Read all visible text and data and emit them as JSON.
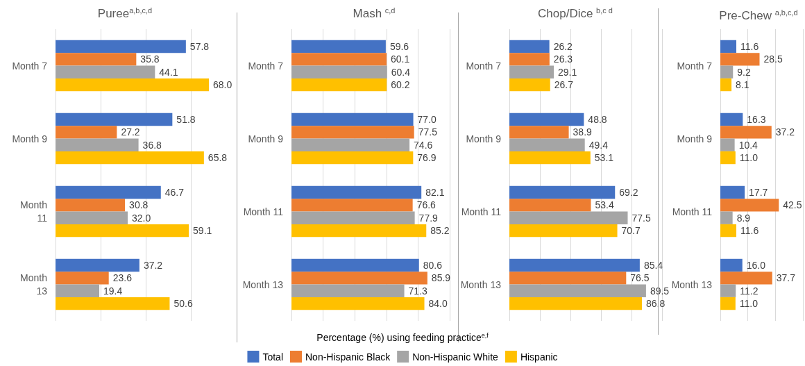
{
  "chart_data": [
    {
      "type": "bar",
      "orientation": "horizontal",
      "title": "Puree$^{a,b,c,d}$",
      "categories": [
        "Month 7",
        "Month 9",
        "Month 11",
        "Month 13"
      ],
      "xlim": [
        0,
        80
      ],
      "xticks": [
        {
          "value": 0,
          "label": null
        },
        {
          "value": 20,
          "label": null
        },
        {
          "value": 40,
          "label": null
        },
        {
          "value": 60,
          "label": null
        },
        {
          "value": 80,
          "label": null
        }
      ],
      "grid": "x",
      "tick_labels": "y",
      "series": [
        {
          "color": "#4472c4",
          "values": [
            57.8,
            51.8,
            46.7,
            37.2
          ],
          "value_labels": [
            "57.8",
            "51.8",
            "46.7",
            "37.2"
          ]
        },
        {
          "color": "#ed7d31",
          "values": [
            35.8,
            27.2,
            30.8,
            23.6
          ],
          "value_labels": [
            "35.8",
            "27.2",
            "30.8",
            "23.6"
          ]
        },
        {
          "color": "#a5a5a5",
          "values": [
            44.1,
            36.8,
            32.0,
            19.4
          ],
          "value_labels": [
            "44.1",
            "36.8",
            "32.0",
            "19.4"
          ]
        },
        {
          "color": "#ffc000",
          "values": [
            68.0,
            65.8,
            59.1,
            50.6
          ],
          "value_labels": [
            "68.0",
            "65.8",
            "59.1",
            "50.6"
          ]
        }
      ]
    },
    {
      "type": "bar",
      "orientation": "horizontal",
      "title": "Mash $^{c,d}$",
      "xlabel": "Percentage (%) using feeding practice$^{e,f}$",
      "legend": "bottom",
      "categories": [
        "Month 7",
        "Month 9",
        "Month 11",
        "Month 13"
      ],
      "xlim": [
        0,
        100
      ],
      "xticks": [
        {
          "value": 0,
          "label": null
        },
        {
          "value": 20,
          "label": null
        },
        {
          "value": 40,
          "label": null
        },
        {
          "value": 60,
          "label": null
        },
        {
          "value": 80,
          "label": null
        },
        {
          "value": 100,
          "label": null
        }
      ],
      "grid": "x",
      "tick_labels": "y",
      "series": [
        {
          "name": "Total",
          "color": "#4472c4",
          "values": [
            59.6,
            77.0,
            82.1,
            80.6
          ],
          "value_labels": [
            "59.6",
            "77.0",
            "82.1",
            "80.6"
          ]
        },
        {
          "name": "Non-Hispanic Black",
          "color": "#ed7d31",
          "values": [
            60.1,
            77.5,
            76.6,
            85.9
          ],
          "value_labels": [
            "60.1",
            "77.5",
            "76.6",
            "85.9"
          ]
        },
        {
          "name": "Non-Hispanic White",
          "color": "#a5a5a5",
          "values": [
            60.4,
            74.6,
            77.9,
            71.3
          ],
          "value_labels": [
            "60.4",
            "74.6",
            "77.9",
            "71.3"
          ]
        },
        {
          "name": "Hispanic",
          "color": "#ffc000",
          "values": [
            60.2,
            76.9,
            85.2,
            84.0
          ],
          "value_labels": [
            "60.2",
            "76.9",
            "85.2",
            "84.0"
          ]
        }
      ]
    },
    {
      "type": "bar",
      "orientation": "horizontal",
      "title": "Chop/Dice $^{b,c d}$",
      "categories": [
        "Month 7",
        "Month 9",
        "Month 11",
        "Month 13"
      ],
      "xlim": [
        0,
        100
      ],
      "xticks": [
        {
          "value": 0,
          "label": null
        },
        {
          "value": 20,
          "label": null
        },
        {
          "value": 40,
          "label": null
        },
        {
          "value": 60,
          "label": null
        },
        {
          "value": 80,
          "label": null
        },
        {
          "value": 100,
          "label": null
        }
      ],
      "grid": "x",
      "tick_labels": "y",
      "series": [
        {
          "color": "#4472c4",
          "values": [
            26.2,
            48.8,
            69.2,
            85.4
          ],
          "value_labels": [
            "26.2",
            "48.8",
            "69.2",
            "85.4"
          ]
        },
        {
          "color": "#ed7d31",
          "values": [
            26.3,
            38.9,
            53.4,
            76.5
          ],
          "value_labels": [
            "26.3",
            "38.9",
            "53.4",
            "76.5"
          ]
        },
        {
          "color": "#a5a5a5",
          "values": [
            29.1,
            49.4,
            77.5,
            89.5
          ],
          "value_labels": [
            "29.1",
            "49.4",
            "77.5",
            "89.5"
          ]
        },
        {
          "color": "#ffc000",
          "values": [
            26.7,
            53.1,
            70.7,
            86.8
          ],
          "value_labels": [
            "26.7",
            "53.1",
            "70.7",
            "86.8"
          ]
        }
      ]
    },
    {
      "type": "bar",
      "orientation": "horizontal",
      "title": "Pre-Chew $^{a,b,c,d}$",
      "categories": [
        "Month 7",
        "Month 9",
        "Month 11",
        "Month 13"
      ],
      "xlim": [
        0,
        60
      ],
      "xticks": [
        {
          "value": 0,
          "label": null
        },
        {
          "value": 20,
          "label": null
        },
        {
          "value": 40,
          "label": null
        },
        {
          "value": 60,
          "label": null
        }
      ],
      "grid": "x",
      "tick_labels": "y",
      "series": [
        {
          "color": "#4472c4",
          "values": [
            11.6,
            16.3,
            17.7,
            16.0
          ],
          "value_labels": [
            "11.6",
            "16.3",
            "17.7",
            "16.0"
          ]
        },
        {
          "color": "#ed7d31",
          "values": [
            28.5,
            37.2,
            42.5,
            37.7
          ],
          "value_labels": [
            "28.5",
            "37.2",
            "42.5",
            "37.7"
          ]
        },
        {
          "color": "#a5a5a5",
          "values": [
            9.2,
            10.4,
            8.9,
            11.2
          ],
          "value_labels": [
            "9.2",
            "10.4",
            "8.9",
            "11.2"
          ]
        },
        {
          "color": "#ffc000",
          "values": [
            8.1,
            11.0,
            11.6,
            11.0
          ],
          "value_labels": [
            "8.1",
            "11.0",
            "11.6",
            "11.0"
          ]
        }
      ]
    }
  ]
}
